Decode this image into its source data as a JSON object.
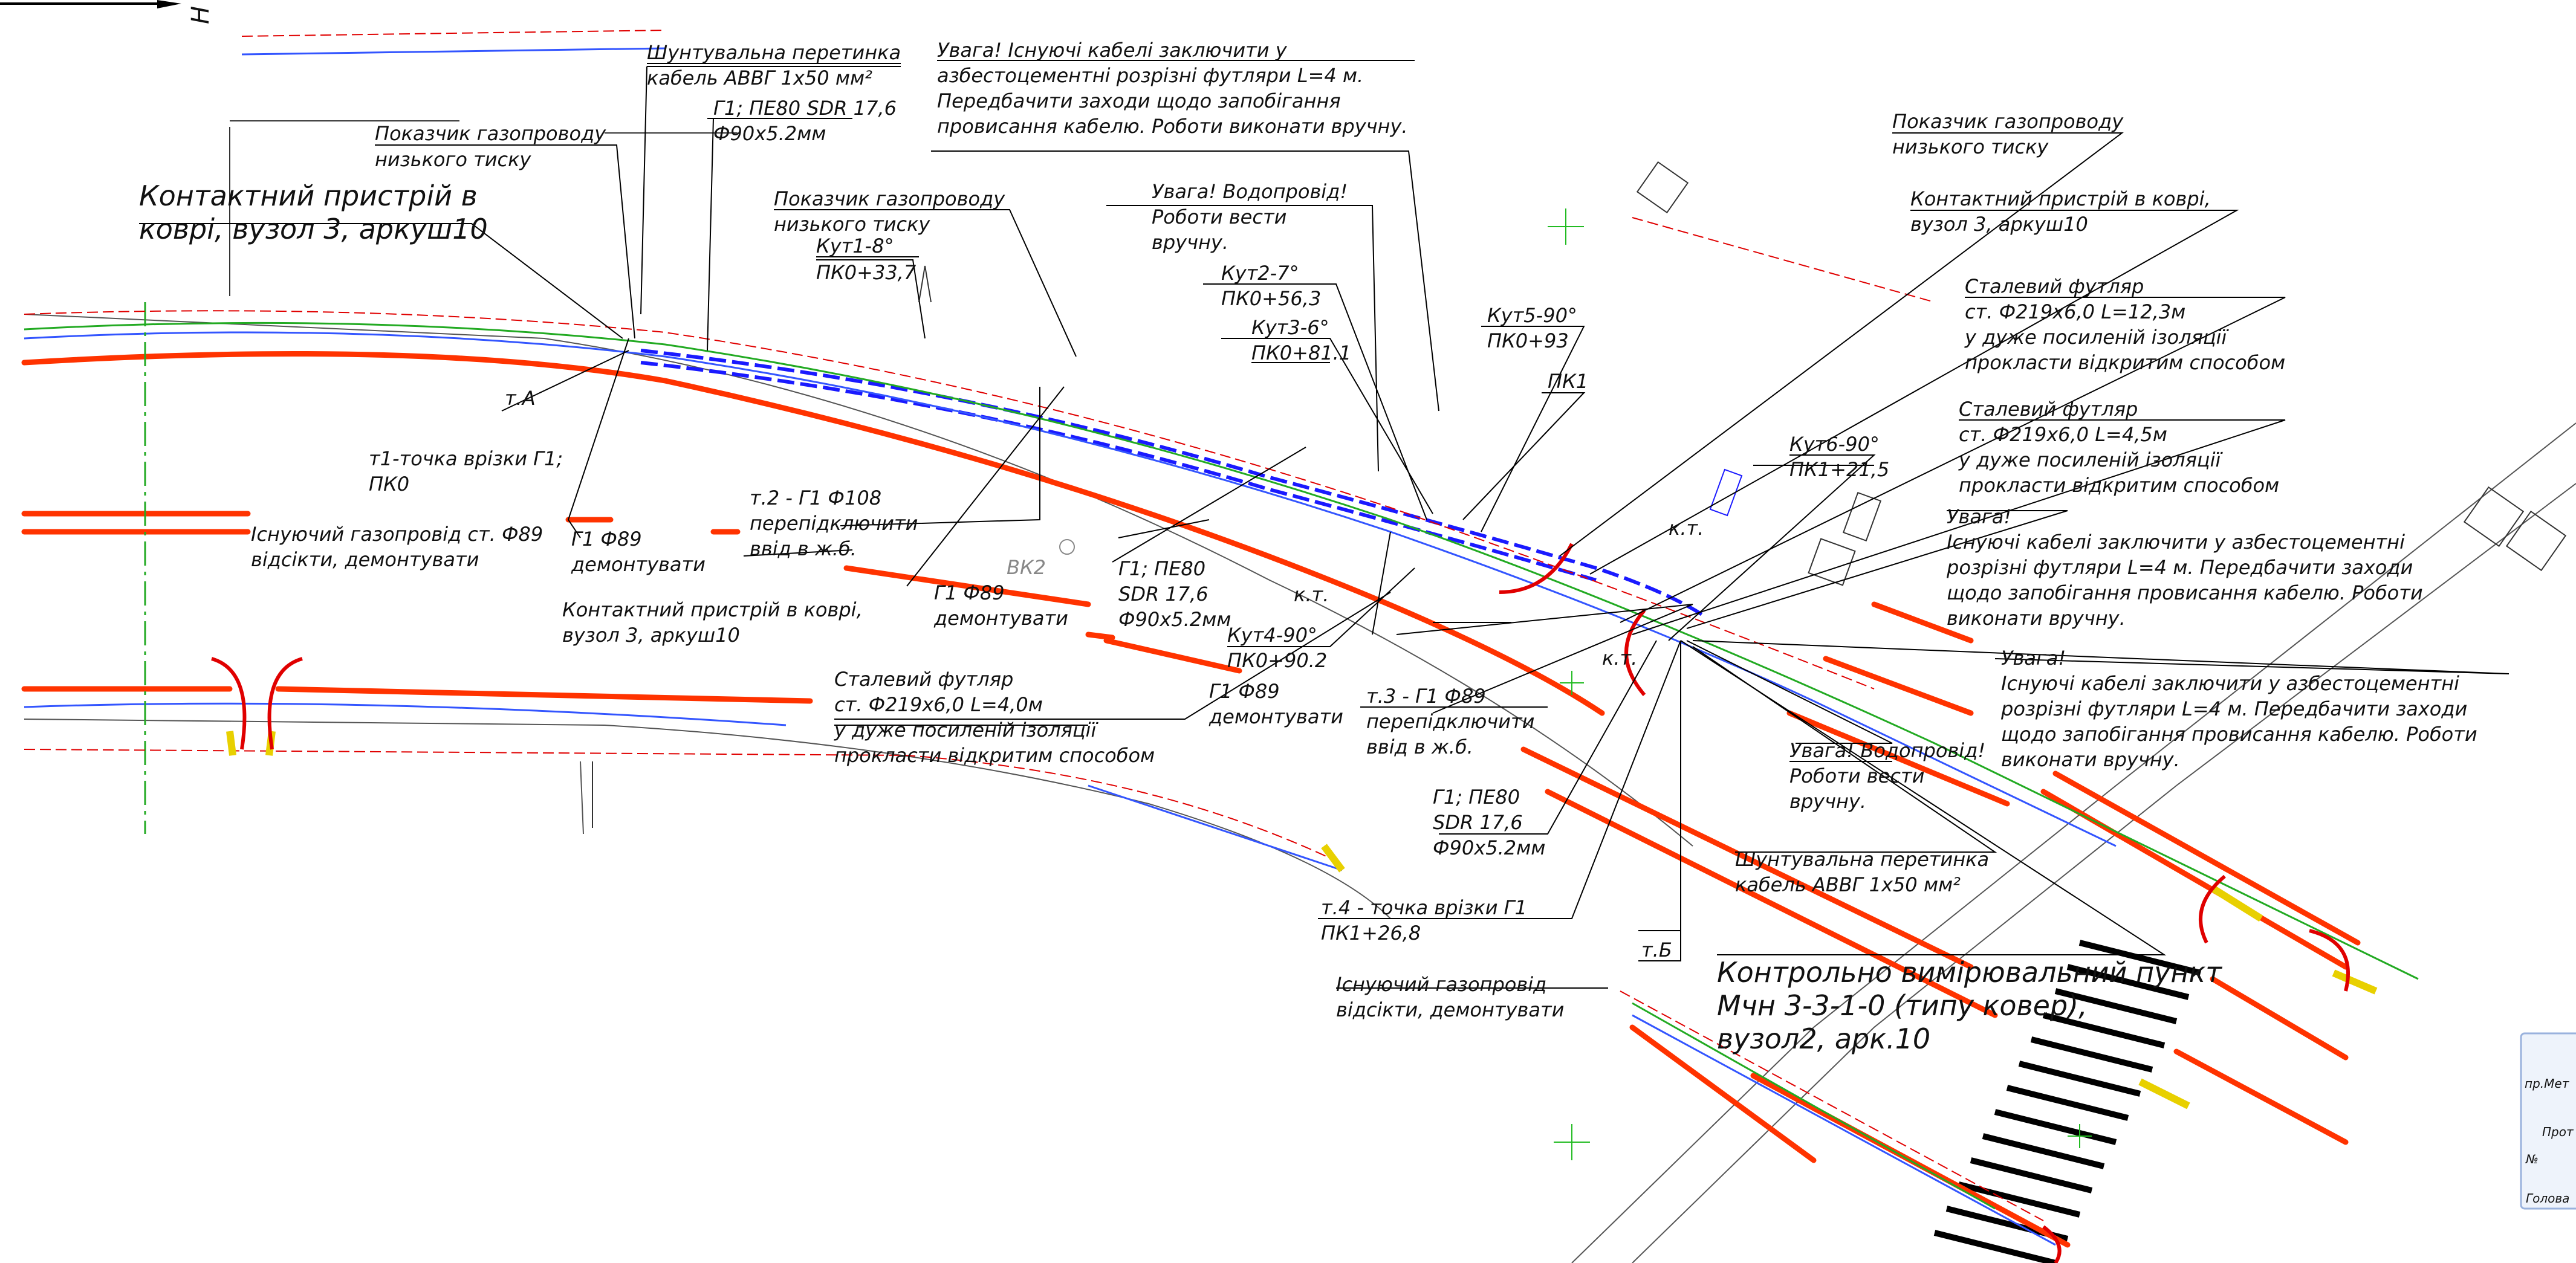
{
  "labels": {
    "pk_indicator_top": [
      "Показчик газопроводу",
      "низького тиску"
    ],
    "contact_device_left": [
      "Контактний пристрій в",
      "коврі, вузол 3, аркуш10"
    ],
    "shunt_top": [
      "Шунтувальна перетинка",
      "кабель АВВГ 1х50 мм²"
    ],
    "g1_pe80_top": [
      "Г1; ПЕ80 SDR 17,6",
      "Ф90х5.2мм"
    ],
    "warning_cables_top": [
      "Увага! Існуючі кабелі заключити у",
      "азбестоцементні розрізні футляри L=4 м.",
      "Передбачити заходи щодо запобігання",
      "провисання кабелю. Роботи виконати вручну."
    ],
    "pk_indicator_mid": [
      "Показчик газопроводу",
      "низького тиску"
    ],
    "kut1": [
      "Кут1-8°",
      "ПК0+33,7"
    ],
    "water_warning_top": [
      "Увага! Водопровід!",
      "Роботи вести",
      "вручну."
    ],
    "kut2": [
      "Кут2-7°",
      "ПК0+56,3"
    ],
    "kut3": [
      "Кут3-6°",
      "ПК0+81.1"
    ],
    "kut5": [
      "Кут5-90°",
      "ПК0+93"
    ],
    "pk1": "ПК1",
    "pk_indicator_right": [
      "Показчик газопроводу",
      "низького тиску"
    ],
    "contact_device_right": [
      "Контактний пристрій в коврі,",
      "вузол 3, аркуш10"
    ],
    "steel_sleeve_1": [
      "Сталевий футляр",
      "ст. Ф219х6,0 L=12,3м",
      "у дуже посиленій ізоляції",
      "прокласти відкритим способом"
    ],
    "steel_sleeve_2": [
      "Сталевий футляр",
      "ст. Ф219х6,0 L=4,5м",
      "у дуже посиленій ізоляції",
      "прокласти відкритим способом"
    ],
    "kut6": [
      "Кут6-90°",
      "ПК1+21,5"
    ],
    "warning_right_1": [
      "Увага!",
      "Існуючі кабелі заключити у азбестоцементні",
      "розрізні футляри L=4 м. Передбачити заходи",
      "щодо запобігання провисання кабелю. Роботи",
      "виконати вручну."
    ],
    "warning_right_2": [
      "Увага!",
      "Існуючі кабелі заключити у азбестоцементні",
      "розрізні футляри L=4 м. Передбачити заходи",
      "щодо запобігання провисання кабелю. Роботи",
      "виконати вручну."
    ],
    "point_a": "т.А",
    "t1_tap": [
      "т1-точка врізки Г1;",
      "ПК0"
    ],
    "existing_pipe_left": [
      "Існуючий газопровід ст. Ф89",
      "відсікти, демонтувати"
    ],
    "g1_f89_dem_1": [
      "Г1 Ф89",
      "демонтувати"
    ],
    "t2": [
      "т.2 - Г1 Ф108",
      "перепідключити",
      "ввід в ж.б."
    ],
    "contact_device_mid": [
      "Контактний пристрій в коврі,",
      "вузол 3, аркуш10"
    ],
    "g1_f89_dem_2": [
      "Г1 Ф89",
      "демонтувати"
    ],
    "g1_pe80_mid": [
      "Г1; ПЕ80",
      "SDR 17,6",
      "Ф90х5.2мм"
    ],
    "kut4": [
      "Кут4-90°",
      "ПК0+90.2"
    ],
    "g1_f89_dem_3": [
      "Г1 Ф89",
      "демонтувати"
    ],
    "t3": [
      "т.3 - Г1 Ф89",
      "перепідключити",
      "ввід в ж.б."
    ],
    "steel_sleeve_3": [
      "Сталевий футляр",
      "ст. Ф219х6,0 L=4,0м",
      "у дуже посиленій ізоляції",
      "прокласти відкритим способом"
    ],
    "kt_1": "к.т.",
    "kt_2": "к.т.",
    "kt_3": "к.т.",
    "water_warning_bottom": [
      "Увага! Водопровід!",
      "Роботи вести",
      "вручну."
    ],
    "g1_pe80_bottom": [
      "Г1; ПЕ80",
      "SDR 17,6",
      "Ф90х5.2мм"
    ],
    "shunt_bottom": [
      "Шунтувальна перетинка",
      "кабель АВВГ 1х50 мм²"
    ],
    "t4": [
      "т.4 - точка врізки Г1",
      "ПК1+26,8"
    ],
    "point_b": "т.Б",
    "control_point": [
      "Контрольно вимірювальний пункт",
      "Мчн 3-3-1-0 (типу ковер),",
      "вузол2, арк.10"
    ],
    "existing_pipe_bottom": [
      "Існуючий газопровід",
      "відсікти, демонтувати"
    ],
    "bk2": "ВК2"
  },
  "stamp": [
    "пр.Мет",
    "Прот",
    "№",
    "Голова"
  ],
  "colors": {
    "gas_existing": "#ff3300",
    "gas_new": "#1a1aff",
    "water": "#22aa22",
    "cable": "#e00000",
    "sewer": "#118811",
    "sleeve": "#e8d000",
    "road": "#000000"
  }
}
